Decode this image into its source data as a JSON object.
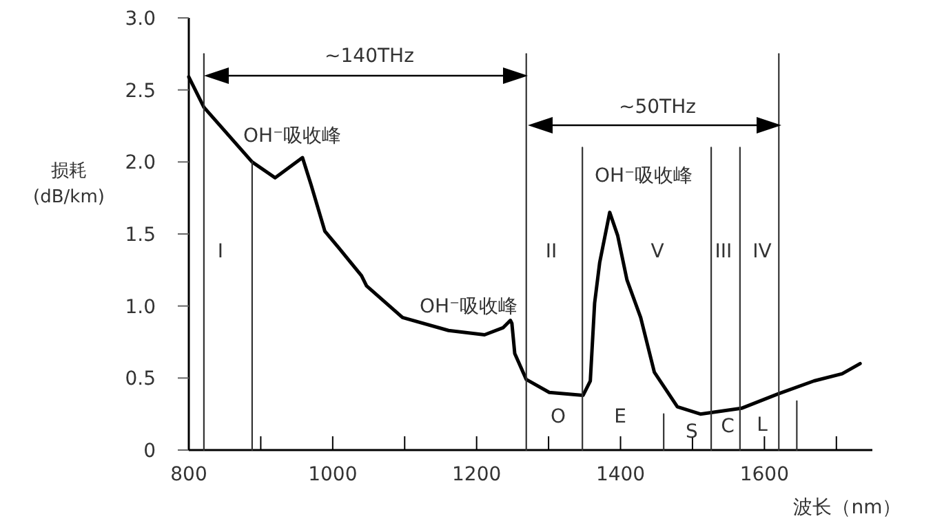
{
  "chart_data": {
    "type": "line",
    "xlabel": "波长（nm）",
    "ylabel": "损耗\n(dB/km)",
    "xlim": [
      800,
      1750
    ],
    "ylim": [
      0,
      3
    ],
    "xticks": [
      800,
      {
        "value": 900,
        "label": null
      },
      1000,
      {
        "value": 1100,
        "label": null
      },
      1200,
      {
        "value": 1300,
        "label": null
      },
      1400,
      {
        "value": 1500,
        "label": null
      },
      1600,
      {
        "value": 1700,
        "label": null
      }
    ],
    "yticks": [
      0,
      0.5,
      {
        "value": 1,
        "label": "1.0"
      },
      1.5,
      {
        "value": 2,
        "label": "2.0"
      },
      2.5,
      {
        "value": 3,
        "label": "3.0"
      }
    ],
    "series": [
      {
        "color": "#000000",
        "x": [
          800,
          821,
          888,
          920,
          958,
          970,
          989,
          1009,
          1040,
          1047,
          1097,
          1161,
          1211,
          1237,
          1247,
          1249,
          1253,
          1269,
          1301,
          1348,
          1358,
          1364,
          1371,
          1385,
          1396,
          1409,
          1428,
          1447,
          1479,
          1511,
          1568,
          1619,
          1669,
          1708,
          1733
        ],
        "values": [
          2.59,
          2.38,
          2.0,
          1.89,
          2.03,
          1.84,
          1.52,
          1.4,
          1.21,
          1.14,
          0.92,
          0.83,
          0.8,
          0.85,
          0.9,
          0.88,
          0.67,
          0.49,
          0.4,
          0.38,
          0.48,
          1.02,
          1.3,
          1.65,
          1.49,
          1.18,
          0.92,
          0.54,
          0.3,
          0.25,
          0.29,
          0.39,
          0.48,
          0.53,
          0.6
        ]
      },
      {
        "color": "#333333",
        "x": [
          821,
          821
        ],
        "values": [
          0,
          2.75
        ]
      },
      {
        "color": "#333333",
        "x": [
          888,
          888
        ],
        "values": [
          0,
          2.0
        ]
      },
      {
        "color": "#333333",
        "x": [
          1269,
          1269
        ],
        "values": [
          0,
          2.75
        ]
      },
      {
        "color": "#333333",
        "x": [
          1347,
          1347
        ],
        "values": [
          0,
          2.1
        ]
      },
      {
        "color": "#333333",
        "x": [
          1460,
          1460
        ],
        "values": [
          0,
          0.25
        ]
      },
      {
        "color": "#333333",
        "x": [
          1526,
          1526
        ],
        "values": [
          0,
          2.1
        ]
      },
      {
        "color": "#333333",
        "x": [
          1566,
          1566
        ],
        "values": [
          0,
          2.1
        ]
      },
      {
        "color": "#333333",
        "x": [
          1620,
          1620
        ],
        "values": [
          0,
          2.75
        ]
      },
      {
        "color": "#333333",
        "x": [
          1645,
          1645
        ],
        "values": [
          0,
          0.34
        ]
      }
    ],
    "annotations": [
      "~140THz",
      "~50THz",
      "OH⁻吸收峰",
      "OH⁻吸收峰",
      "OH⁻吸收峰",
      "I",
      "II",
      "V",
      "III",
      "IV",
      "O",
      "E",
      "S",
      "C",
      "L"
    ]
  }
}
